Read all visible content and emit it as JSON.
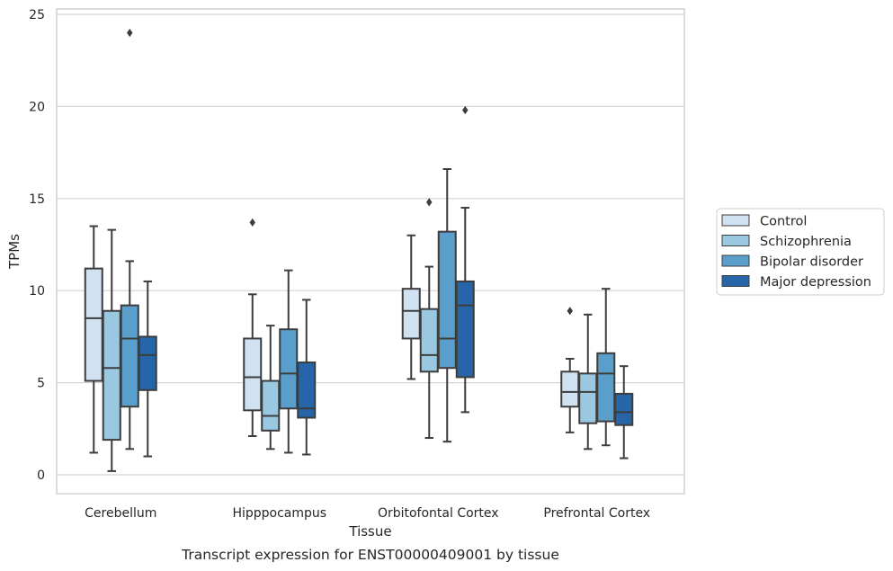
{
  "chart_data": {
    "type": "box",
    "title": "",
    "xlabel": "Tissue",
    "ylabel": "TPMs",
    "caption": "Transcript expression for ENST00000409001 by tissue",
    "ylim": [
      -0.9,
      25.4
    ],
    "yticks": [
      0,
      5,
      10,
      15,
      20,
      25
    ],
    "grid": "horizontal",
    "legend_position": "right",
    "categories": [
      "Cerebellum",
      "Hipppocampus",
      "Orbitofontal Cortex",
      "Prefrontal Cortex"
    ],
    "series": [
      {
        "name": "Control",
        "color": "#d0e1f2",
        "boxes": [
          {
            "whislo": 1.2,
            "q1": 5.1,
            "med": 8.5,
            "q3": 11.2,
            "whishi": 13.5,
            "fliers": []
          },
          {
            "whislo": 2.1,
            "q1": 3.5,
            "med": 5.3,
            "q3": 7.4,
            "whishi": 9.8,
            "fliers": [
              13.7
            ]
          },
          {
            "whislo": 5.2,
            "q1": 7.4,
            "med": 8.9,
            "q3": 10.1,
            "whishi": 13.0,
            "fliers": []
          },
          {
            "whislo": 2.3,
            "q1": 3.7,
            "med": 4.5,
            "q3": 5.6,
            "whishi": 6.3,
            "fliers": [
              8.9
            ]
          }
        ]
      },
      {
        "name": "Schizophrenia",
        "color": "#9ac8e0",
        "boxes": [
          {
            "whislo": 0.2,
            "q1": 1.9,
            "med": 5.8,
            "q3": 8.9,
            "whishi": 13.3,
            "fliers": []
          },
          {
            "whislo": 1.4,
            "q1": 2.4,
            "med": 3.2,
            "q3": 5.1,
            "whishi": 8.1,
            "fliers": []
          },
          {
            "whislo": 2.0,
            "q1": 5.6,
            "med": 6.5,
            "q3": 9.0,
            "whishi": 11.3,
            "fliers": [
              14.8
            ]
          },
          {
            "whislo": 1.4,
            "q1": 2.8,
            "med": 4.5,
            "q3": 5.5,
            "whishi": 8.7,
            "fliers": []
          }
        ]
      },
      {
        "name": "Bipolar disorder",
        "color": "#5a9fcc",
        "boxes": [
          {
            "whislo": 1.4,
            "q1": 3.7,
            "med": 7.4,
            "q3": 9.2,
            "whishi": 11.6,
            "fliers": [
              24.0
            ]
          },
          {
            "whislo": 1.2,
            "q1": 3.6,
            "med": 5.5,
            "q3": 7.9,
            "whishi": 11.1,
            "fliers": []
          },
          {
            "whislo": 1.8,
            "q1": 5.8,
            "med": 7.4,
            "q3": 13.2,
            "whishi": 16.6,
            "fliers": []
          },
          {
            "whislo": 1.6,
            "q1": 2.9,
            "med": 5.5,
            "q3": 6.6,
            "whishi": 10.1,
            "fliers": []
          }
        ]
      },
      {
        "name": "Major depression",
        "color": "#2666a8",
        "boxes": [
          {
            "whislo": 1.0,
            "q1": 4.6,
            "med": 6.5,
            "q3": 7.5,
            "whishi": 10.5,
            "fliers": []
          },
          {
            "whislo": 1.1,
            "q1": 3.1,
            "med": 3.6,
            "q3": 6.1,
            "whishi": 9.5,
            "fliers": []
          },
          {
            "whislo": 3.4,
            "q1": 5.3,
            "med": 9.2,
            "q3": 10.5,
            "whishi": 14.5,
            "fliers": [
              19.8
            ]
          },
          {
            "whislo": 0.9,
            "q1": 2.7,
            "med": 3.4,
            "q3": 4.4,
            "whishi": 5.9,
            "fliers": []
          }
        ]
      }
    ]
  }
}
